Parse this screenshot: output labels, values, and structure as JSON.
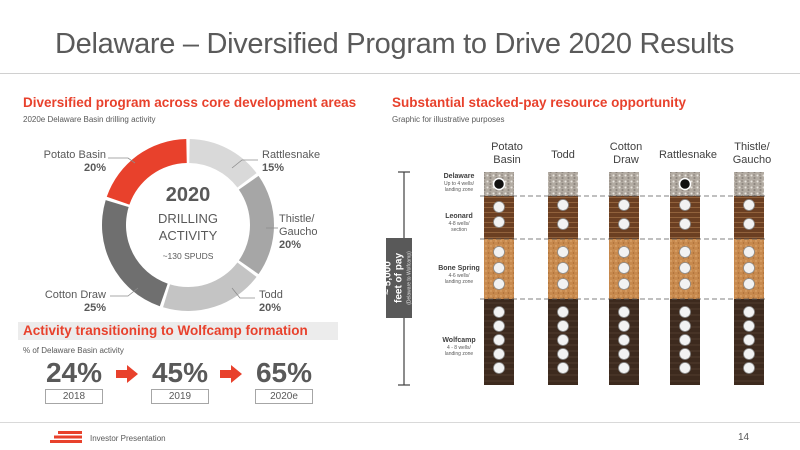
{
  "title": "Delaware – Diversified Program to Drive 2020 Results",
  "left": {
    "heading": "Diversified program across core development areas",
    "subheading": "2020e Delaware Basin drilling activity",
    "donut": {
      "center_year": "2020",
      "center_line1": "DRILLING",
      "center_line2": "ACTIVITY",
      "center_spuds": "~130 SPUDS",
      "segments": [
        {
          "name": "Potato Basin",
          "pct": "20%",
          "value": 20,
          "color": "#e8412c"
        },
        {
          "name": "Rattlesnake",
          "pct": "15%",
          "value": 15,
          "color": "#d9d9d9"
        },
        {
          "name": "Thistle/",
          "name2": "Gaucho",
          "pct": "20%",
          "value": 20,
          "color": "#a6a6a6"
        },
        {
          "name": "Todd",
          "pct": "20%",
          "value": 20,
          "color": "#c4c4c4"
        },
        {
          "name": "Cotton Draw",
          "pct": "25%",
          "value": 25,
          "color": "#6f6f6f"
        }
      ]
    }
  },
  "activity": {
    "heading": "Activity transitioning to Wolfcamp formation",
    "subheading": "% of Delaware Basin activity",
    "items": [
      {
        "pct": "24%",
        "year": "2018"
      },
      {
        "pct": "45%",
        "year": "2019"
      },
      {
        "pct": "65%",
        "year": "2020e"
      }
    ],
    "arrow_color": "#e8412c"
  },
  "right": {
    "heading": "Substantial stacked-pay resource opportunity",
    "subheading": "Graphic for illustrative purposes",
    "columns": [
      {
        "line1": "Potato",
        "line2": "Basin"
      },
      {
        "line1": "Todd",
        "line2": ""
      },
      {
        "line1": "Cotton",
        "line2": "Draw"
      },
      {
        "line1": "Rattlesnake",
        "line2": ""
      },
      {
        "line1": "Thistle/",
        "line2": "Gaucho"
      }
    ],
    "zones": [
      {
        "name": "Delaware",
        "desc1": "Up to 4 wells/",
        "desc2": "landing zone"
      },
      {
        "name": "Leonard",
        "desc1": "4-8 wells/",
        "desc2": "section"
      },
      {
        "name": "Bone Spring",
        "desc1": "4-6 wells/",
        "desc2": "landing zone"
      },
      {
        "name": "Wolfcamp",
        "desc1": "4 - 8 wells/",
        "desc2": "landing zone"
      }
    ],
    "pay_main": "~ 5,000",
    "pay_line2": "feet of pay",
    "pay_sub": "(Delaware to Wolfcamp)"
  },
  "footer": {
    "text": "Investor Presentation",
    "page": "14",
    "logo_color": "#e8412c"
  }
}
